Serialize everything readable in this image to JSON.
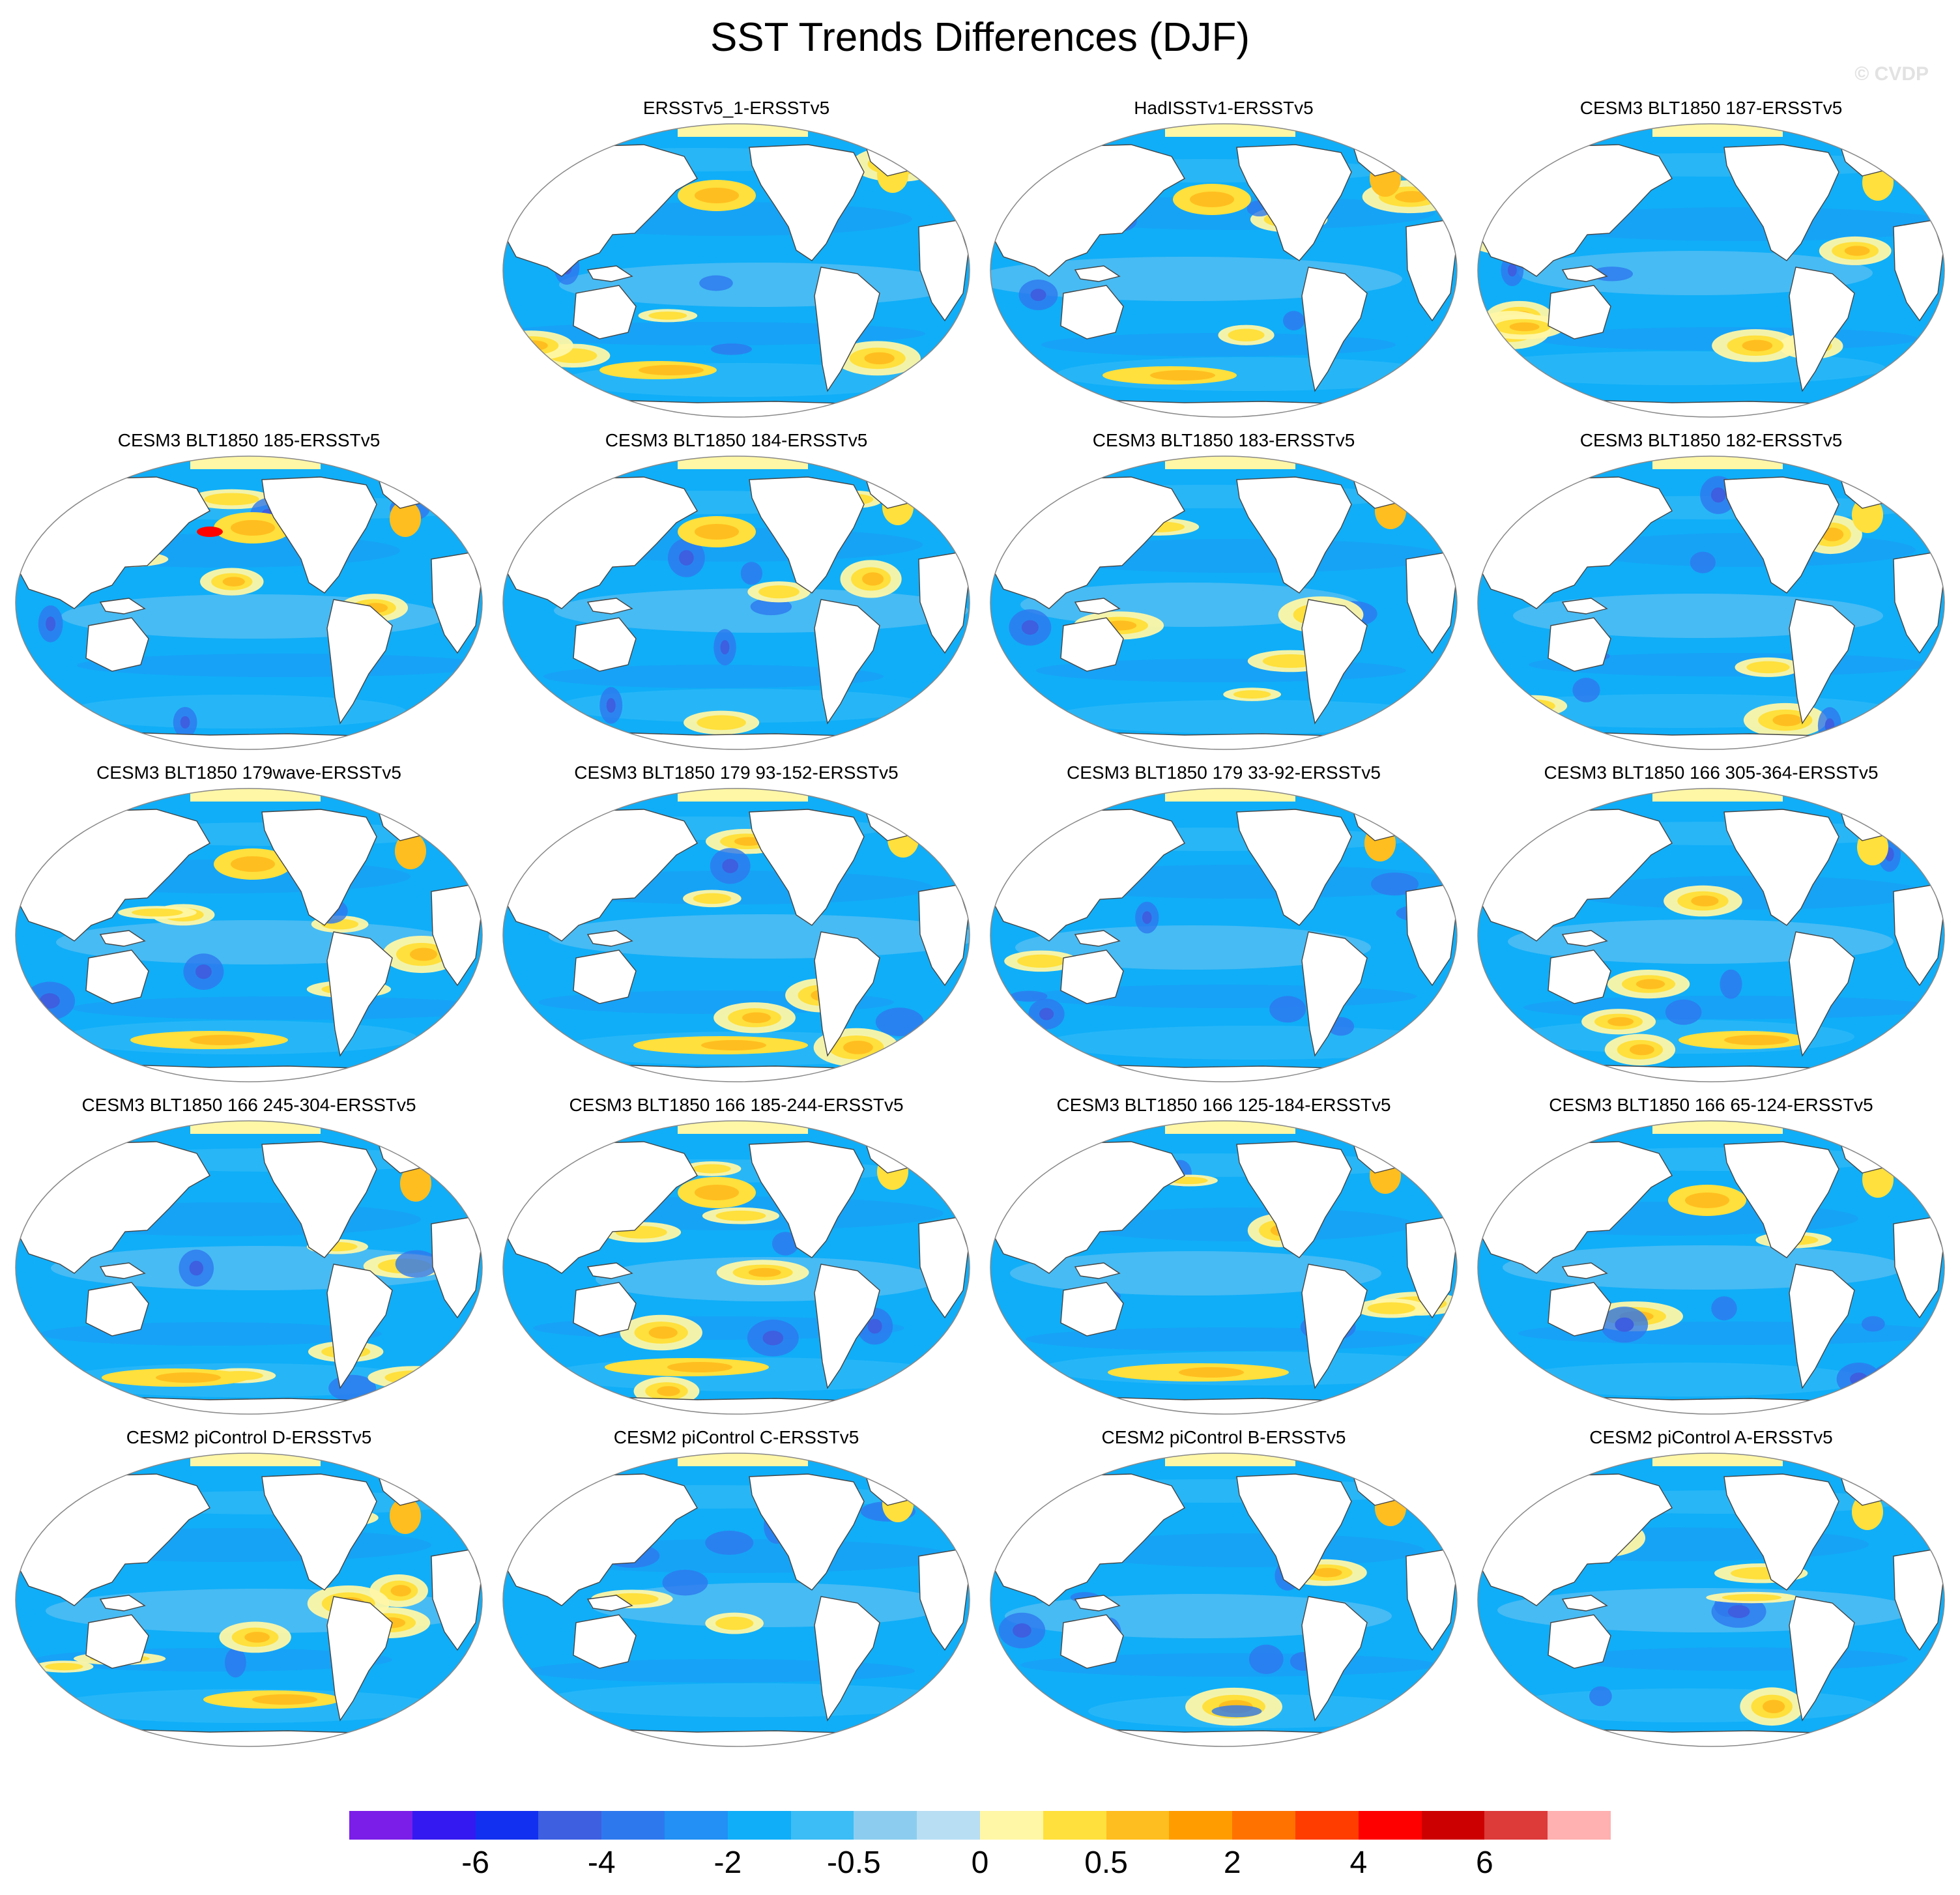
{
  "title": "SST Trends Differences (DJF)",
  "watermark": "© CVDP",
  "colorbar": {
    "colors": [
      "#7b1ee8",
      "#3419f0",
      "#1230f0",
      "#3d5fe0",
      "#2e78ee",
      "#2290f4",
      "#10aef8",
      "#3cbdf5",
      "#8ccdef",
      "#b8def4",
      "#fff7a6",
      "#ffe03c",
      "#ffbe1f",
      "#ff9d00",
      "#ff7200",
      "#ff3d00",
      "#ff0000",
      "#cc0000",
      "#dd3a3a",
      "#ffb0b0"
    ],
    "labels": [
      {
        "text": "-6",
        "boundary": 2
      },
      {
        "text": "-4",
        "boundary": 4
      },
      {
        "text": "-2",
        "boundary": 6
      },
      {
        "text": "-0.5",
        "boundary": 8
      },
      {
        "text": "0",
        "boundary": 10
      },
      {
        "text": "0.5",
        "boundary": 12
      },
      {
        "text": "2",
        "boundary": 14
      },
      {
        "text": "4",
        "boundary": 16
      },
      {
        "text": "6",
        "boundary": 18
      }
    ]
  },
  "panels": [
    {
      "title": "ERSSTv5_1-ERSSTv5"
    },
    {
      "title": "HadISSTv1-ERSSTv5"
    },
    {
      "title": "CESM3 BLT1850 187-ERSSTv5"
    },
    {
      "title": "CESM3 BLT1850 185-ERSSTv5"
    },
    {
      "title": "CESM3 BLT1850 184-ERSSTv5"
    },
    {
      "title": "CESM3 BLT1850 183-ERSSTv5"
    },
    {
      "title": "CESM3 BLT1850 182-ERSSTv5"
    },
    {
      "title": "CESM3 BLT1850 179wave-ERSSTv5"
    },
    {
      "title": "CESM3 BLT1850 179 93-152-ERSSTv5"
    },
    {
      "title": "CESM3 BLT1850 179 33-92-ERSSTv5"
    },
    {
      "title": "CESM3 BLT1850 166 305-364-ERSSTv5"
    },
    {
      "title": "CESM3 BLT1850 166 245-304-ERSSTv5"
    },
    {
      "title": "CESM3 BLT1850 166 185-244-ERSSTv5"
    },
    {
      "title": "CESM3 BLT1850 166 125-184-ERSSTv5"
    },
    {
      "title": "CESM3 BLT1850 166 65-124-ERSSTv5"
    },
    {
      "title": "CESM2 piControl D-ERSSTv5"
    },
    {
      "title": "CESM2 piControl C-ERSSTv5"
    },
    {
      "title": "CESM2 piControl B-ERSSTv5"
    },
    {
      "title": "CESM2 piControl A-ERSSTv5"
    }
  ]
}
